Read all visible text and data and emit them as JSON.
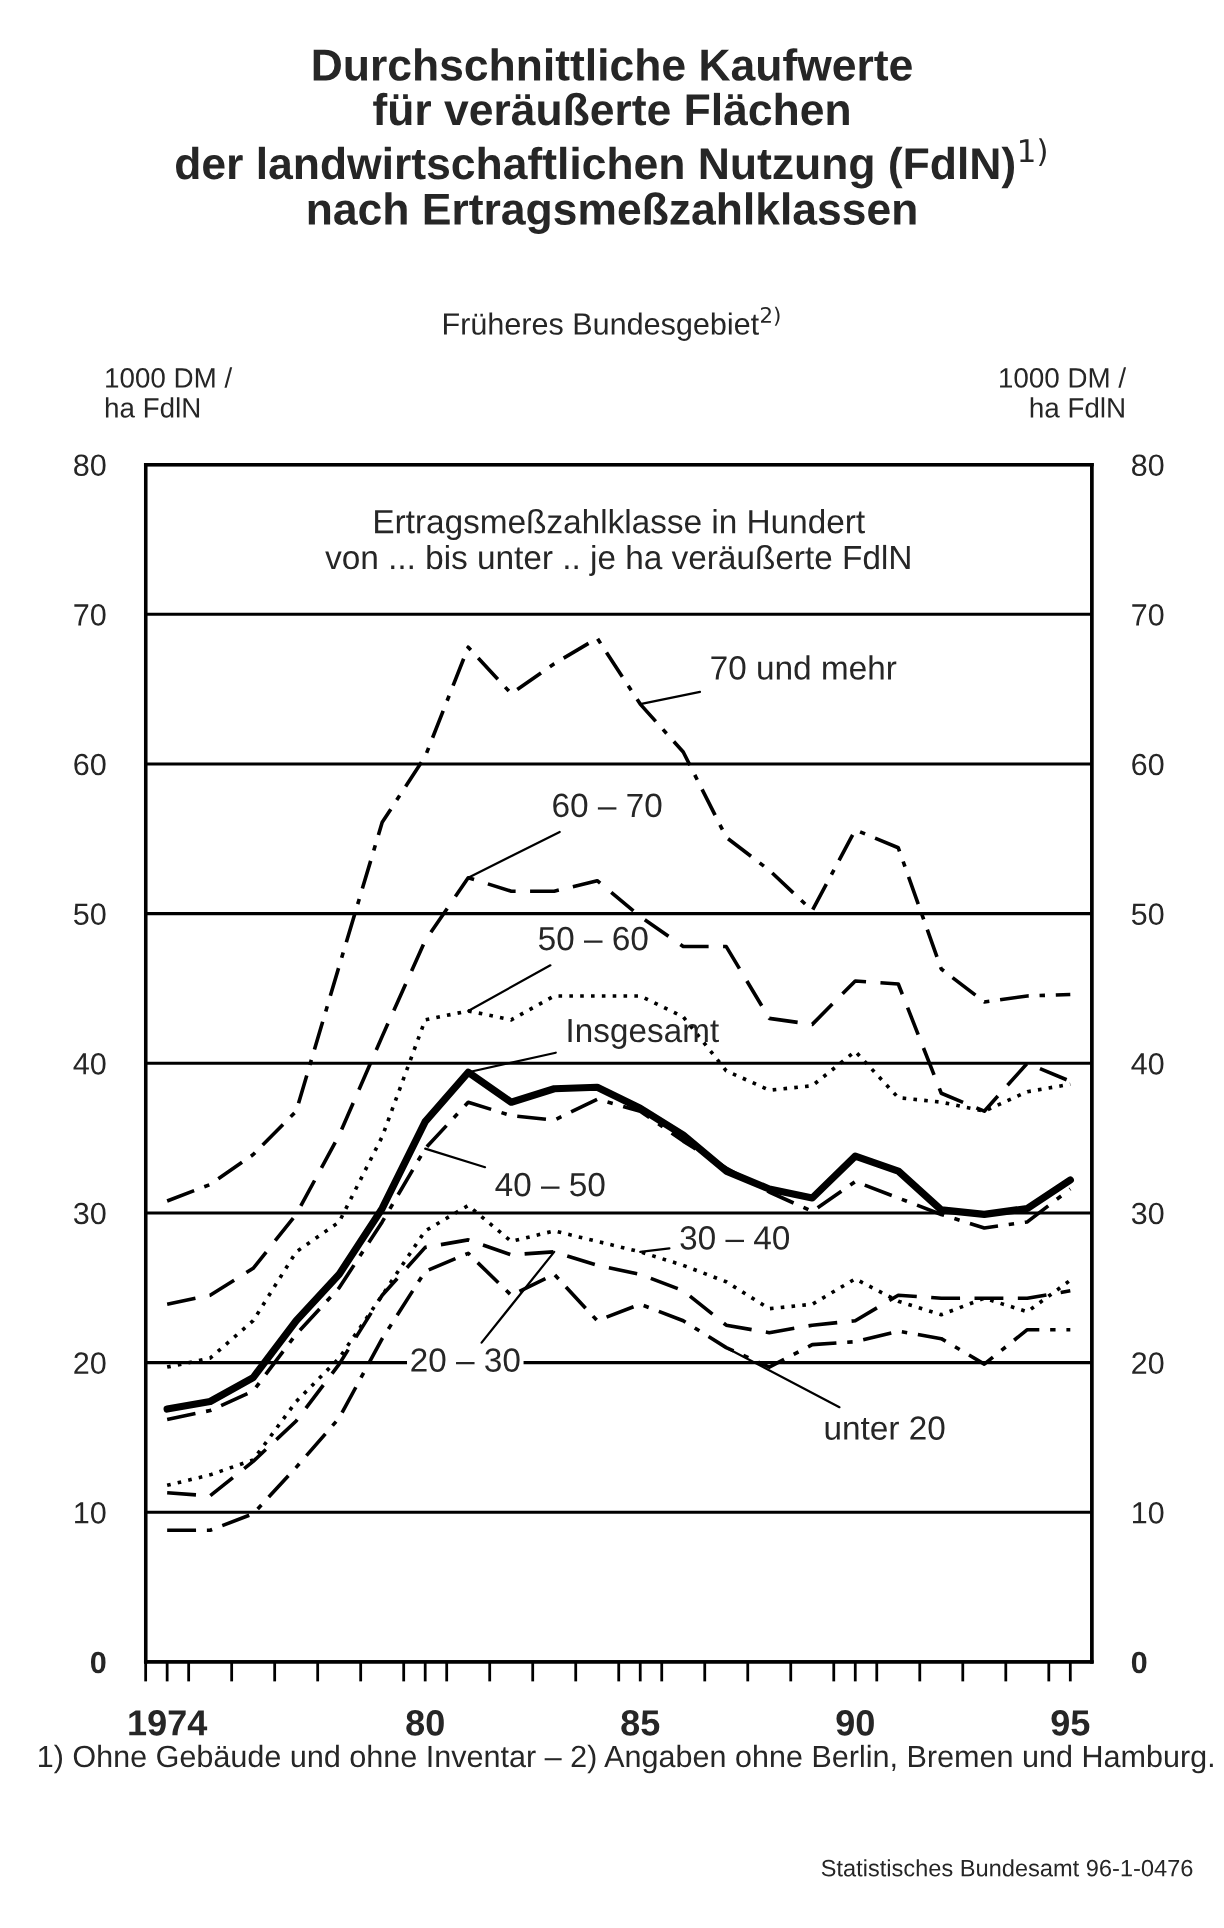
{
  "chart_data": {
    "type": "line",
    "title": "Durchschnittliche Kaufwerte\nfür veräußerte Flächen\nder landwirtschaftlichen Nutzung (FdlN)$^{1)}$\nnach Ertragsmeßzahlklassen",
    "subtitle": "Früheres Bundesgebiet$^{2)}$",
    "ylabel": "1000 DM /\nha FdlN",
    "y2label": "1000 DM /\nha FdlN",
    "x": [
      1974,
      1975,
      1976,
      1977,
      1978,
      1979,
      1980,
      1981,
      1982,
      1983,
      1984,
      1985,
      1986,
      1987,
      1988,
      1989,
      1990,
      1991,
      1992,
      1993,
      1994,
      1995
    ],
    "series": [
      {
        "color": "#000000",
        "line_style": "dashdot",
        "values": [
          30.8,
          31.9,
          33.9,
          36.8,
          46.5,
          56.1,
          60.5,
          67.8,
          64.7,
          66.7,
          68.4,
          64.0,
          60.8,
          55.1,
          52.9,
          50.2,
          55.6,
          54.4,
          46.3,
          44.1,
          44.5,
          44.6
        ]
      },
      {
        "color": "#000000",
        "line_style": "dashed",
        "values": [
          23.9,
          24.5,
          26.3,
          29.9,
          35.2,
          41.8,
          48.2,
          52.4,
          51.5,
          51.5,
          52.2,
          49.8,
          47.8,
          47.8,
          43.0,
          42.6,
          45.5,
          45.3,
          38.0,
          36.8,
          40.0,
          38.8
        ]
      },
      {
        "color": "#000000",
        "line_style": "dotted",
        "values": [
          19.7,
          20.3,
          22.8,
          27.4,
          29.4,
          35.1,
          42.9,
          43.5,
          42.9,
          44.5,
          44.5,
          44.5,
          43.1,
          39.5,
          38.2,
          38.5,
          40.8,
          37.7,
          37.4,
          36.8,
          38.1,
          38.6
        ]
      },
      {
        "color": "#000000",
        "line_style": "solid",
        "values": [
          16.9,
          17.4,
          19.0,
          22.8,
          25.9,
          30.3,
          36.1,
          39.4,
          37.4,
          38.3,
          38.4,
          37.0,
          35.2,
          32.8,
          31.6,
          31.0,
          33.8,
          32.8,
          30.2,
          29.9,
          30.3,
          32.2
        ]
      },
      {
        "color": "#000000",
        "line_style": "dashdot",
        "values": [
          16.2,
          16.8,
          18.1,
          21.9,
          25.0,
          29.4,
          34.3,
          37.4,
          36.5,
          36.2,
          37.6,
          36.8,
          34.8,
          33.0,
          31.4,
          30.1,
          32.1,
          31.0,
          29.9,
          29.0,
          29.4,
          31.6
        ]
      },
      {
        "color": "#000000",
        "line_style": "dotted",
        "values": [
          11.8,
          12.5,
          13.5,
          17.4,
          20.3,
          24.5,
          28.8,
          30.5,
          28.1,
          28.8,
          28.1,
          27.4,
          26.5,
          25.4,
          23.6,
          23.9,
          25.6,
          24.1,
          23.2,
          24.3,
          23.4,
          25.5
        ]
      },
      {
        "color": "#000000",
        "line_style": "dashed",
        "values": [
          11.3,
          11.1,
          13.4,
          16.1,
          19.9,
          24.5,
          27.7,
          28.2,
          27.2,
          27.4,
          26.5,
          25.9,
          24.8,
          22.5,
          22.0,
          22.5,
          22.8,
          24.5,
          24.3,
          24.3,
          24.3,
          24.8
        ]
      },
      {
        "color": "#000000",
        "line_style": "dashdot",
        "values": [
          8.8,
          8.8,
          9.9,
          13.0,
          16.3,
          21.6,
          26.1,
          27.3,
          24.5,
          25.9,
          22.8,
          23.9,
          22.8,
          21.0,
          19.7,
          21.2,
          21.4,
          22.1,
          21.6,
          19.9,
          22.2,
          22.2
        ]
      }
    ],
    "xlim": [
      1973.5,
      1995.5
    ],
    "xticks": [
      {
        "value": 1973.5,
        "label": null
      },
      {
        "value": 1974.5,
        "label": null
      },
      {
        "value": 1975.5,
        "label": null
      },
      {
        "value": 1976.5,
        "label": null
      },
      {
        "value": 1977.5,
        "label": null
      },
      {
        "value": 1978.5,
        "label": null
      },
      {
        "value": 1979.5,
        "label": null
      },
      {
        "value": 1980.5,
        "label": null
      },
      {
        "value": 1981.5,
        "label": null
      },
      {
        "value": 1982.5,
        "label": null
      },
      {
        "value": 1983.5,
        "label": null
      },
      {
        "value": 1984.5,
        "label": null
      },
      {
        "value": 1985.5,
        "label": null
      },
      {
        "value": 1986.5,
        "label": null
      },
      {
        "value": 1987.5,
        "label": null
      },
      {
        "value": 1988.5,
        "label": null
      },
      {
        "value": 1989.5,
        "label": null
      },
      {
        "value": 1990.5,
        "label": null
      },
      {
        "value": 1991.5,
        "label": null
      },
      {
        "value": 1992.5,
        "label": null
      },
      {
        "value": 1993.5,
        "label": null
      },
      {
        "value": 1994.5,
        "label": null
      },
      {
        "value": 1974,
        "label": "1974"
      },
      {
        "value": 1980,
        "label": "80"
      },
      {
        "value": 1985,
        "label": "85"
      },
      {
        "value": 1990,
        "label": "90"
      },
      {
        "value": 1995,
        "label": "95"
      }
    ],
    "ylim": [
      0,
      80
    ],
    "yticks": [
      0,
      10,
      20,
      30,
      40,
      50,
      60,
      70,
      80
    ],
    "y2lim": [
      0,
      80
    ],
    "y2ticks": [
      0,
      10,
      20,
      30,
      40,
      50,
      60,
      70,
      80
    ],
    "grid": "y",
    "annotations": [
      "Ertragsmeßzahlklasse in Hundert\nvon ... bis unter .. je ha veräußerte FdlN",
      {
        "text": "70 und mehr",
        "x": 1985,
        "y": 64.0
      },
      {
        "text": "60 – 70",
        "x": 1981,
        "y": 52.4
      },
      {
        "text": "50 – 60",
        "x": 1981,
        "y": 43.5
      },
      {
        "text": "Insgesamt",
        "x": 1981,
        "y": 39.4
      },
      {
        "text": "40 – 50",
        "x": 1980,
        "y": 34.3
      },
      {
        "text": "30 – 40",
        "x": 1985,
        "y": 27.4
      },
      {
        "text": "20 – 30",
        "x": 1983,
        "y": 27.4
      },
      {
        "text": "unter 20",
        "x": 1987,
        "y": 21.0
      },
      "1) Ohne Gebäude und ohne Inventar – 2) Angaben ohne Berlin, Bremen und Hamburg.",
      "Statistisches Bundesamt 96-1-0476"
    ]
  }
}
